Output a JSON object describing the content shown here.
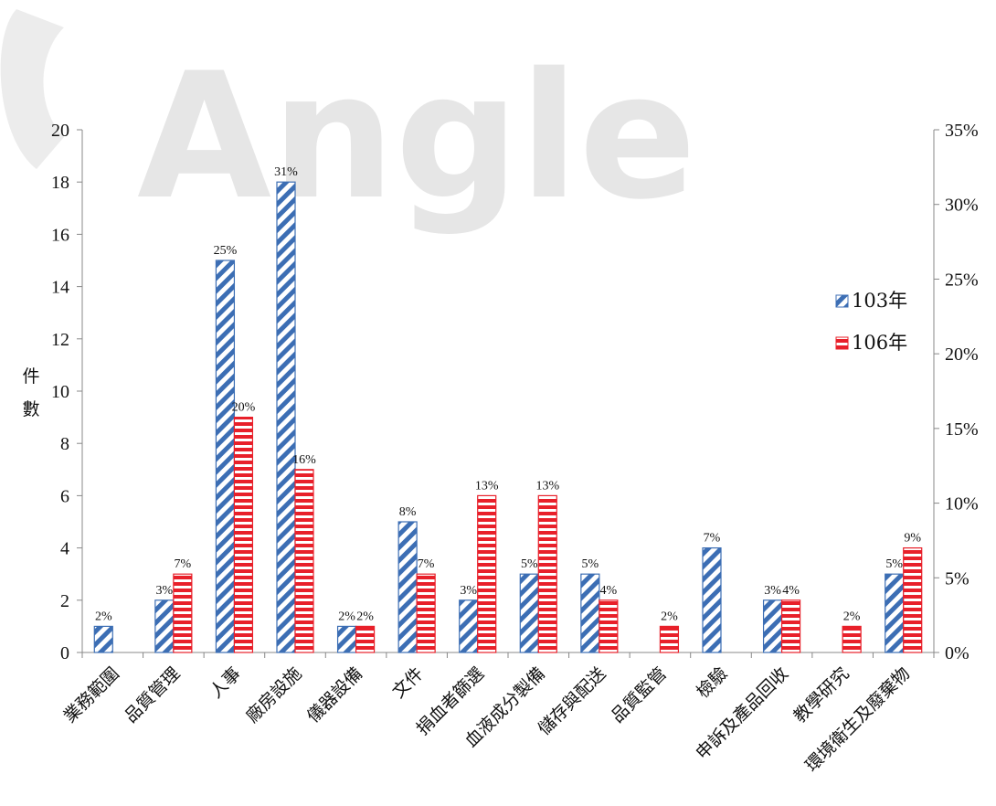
{
  "watermark": "Angle",
  "chart_data": {
    "type": "bar",
    "title": "",
    "xlabel": "",
    "ylabel": "件數",
    "ylim": [
      0,
      20
    ],
    "yticks": [
      0,
      2,
      4,
      6,
      8,
      10,
      12,
      14,
      16,
      18,
      20
    ],
    "y2lim": [
      0,
      35
    ],
    "y2ticks": [
      "0%",
      "5%",
      "10%",
      "15%",
      "20%",
      "25%",
      "30%",
      "35%"
    ],
    "legend_position": "right",
    "categories": [
      "業務範圍",
      "品質管理",
      "人事",
      "廠房設施",
      "儀器設備",
      "文件",
      "捐血者篩選",
      "血液成分製備",
      "儲存與配送",
      "品質監管",
      "檢驗",
      "申訴及產品回收",
      "教學研究",
      "環境衛生及廢棄物"
    ],
    "series": [
      {
        "name": "103年",
        "color": "#3c6eb4",
        "pattern": "diagonal-stripes",
        "values": [
          1,
          2,
          15,
          18,
          1,
          5,
          2,
          3,
          3,
          0,
          4,
          2,
          0,
          3
        ],
        "labels": [
          "2%",
          "3%",
          "25%",
          "31%",
          "2%",
          "8%",
          "3%",
          "5%",
          "5%",
          "",
          "7%",
          "3%",
          "",
          "5%"
        ]
      },
      {
        "name": "106年",
        "color": "#e8202a",
        "pattern": "horizontal-stripes",
        "values": [
          0,
          3,
          9,
          7,
          1,
          3,
          6,
          6,
          2,
          1,
          0,
          2,
          1,
          4
        ],
        "labels": [
          "",
          "7%",
          "20%",
          "16%",
          "2%",
          "7%",
          "13%",
          "13%",
          "4%",
          "2%",
          "",
          "4%",
          "2%",
          "9%"
        ]
      }
    ]
  }
}
